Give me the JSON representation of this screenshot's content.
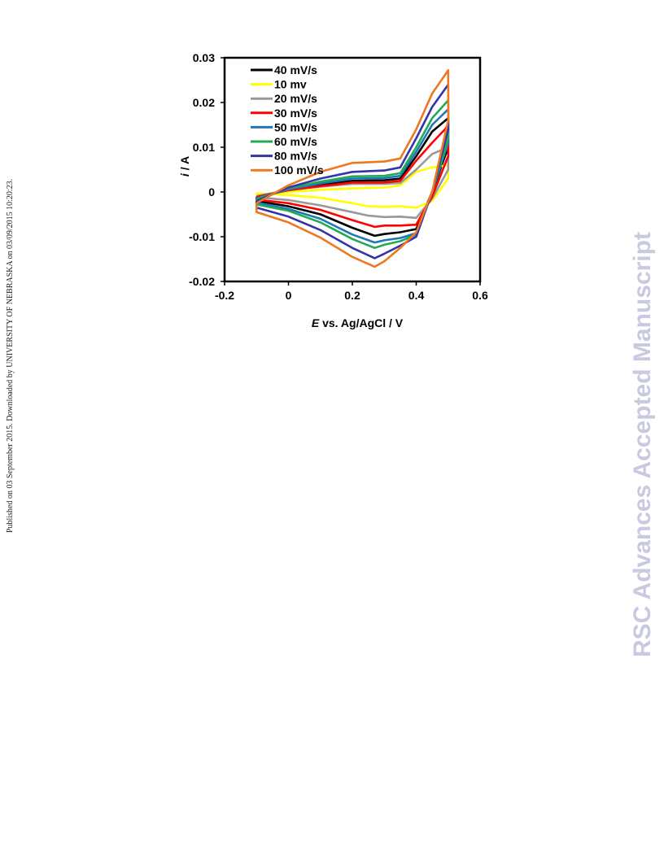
{
  "side_note": "Published on 03 September 2015. Downloaded by UNIVERSITY OF NEBRASKA on 03/09/2015 10:20:23.",
  "watermark": "RSC Advances Accepted Manuscript",
  "chart_data": {
    "type": "line",
    "xlabel_italic": "E",
    "xlabel_rest": " vs. Ag/AgCl  / V",
    "ylabel_italic": "i",
    "ylabel_rest": " / A",
    "xlim": [
      -0.2,
      0.6
    ],
    "ylim": [
      -0.02,
      0.03
    ],
    "x_ticks": [
      -0.2,
      0,
      0.2,
      0.4,
      0.6
    ],
    "x_tick_labels": [
      "-0.2",
      "0",
      "0.2",
      "0.4",
      "0.6"
    ],
    "y_ticks": [
      -0.02,
      -0.01,
      0,
      0.01,
      0.02,
      0.03
    ],
    "y_tick_labels": [
      "-0.02",
      "-0.01",
      "0",
      "0.01",
      "0.02",
      "0.03"
    ],
    "grid": false,
    "legend_position": "top-left",
    "series": [
      {
        "name": "40 mV/s",
        "color": "#000000",
        "x": [
          -0.1,
          0,
          0.1,
          0.2,
          0.3,
          0.35,
          0.4,
          0.45,
          0.5,
          0.5,
          0.45,
          0.4,
          0.35,
          0.3,
          0.27,
          0.2,
          0.1,
          0,
          -0.1,
          -0.1
        ],
        "y": [
          -0.0012,
          0.0005,
          0.0015,
          0.0025,
          0.0026,
          0.003,
          0.008,
          0.0135,
          0.0165,
          0.01,
          0.0,
          -0.0083,
          -0.009,
          -0.0094,
          -0.0098,
          -0.008,
          -0.005,
          -0.0032,
          -0.002,
          -0.0012
        ]
      },
      {
        "name": "10 mv",
        "color": "#ffff00",
        "x": [
          -0.1,
          0,
          0.1,
          0.2,
          0.3,
          0.35,
          0.4,
          0.45,
          0.5,
          0.5,
          0.45,
          0.4,
          0.35,
          0.3,
          0.25,
          0.2,
          0.1,
          0,
          -0.1,
          -0.1
        ],
        "y": [
          -0.0006,
          0.0,
          0.0005,
          0.0008,
          0.001,
          0.0015,
          0.0045,
          0.0055,
          0.006,
          0.003,
          -0.002,
          -0.0035,
          -0.0032,
          -0.0033,
          -0.0032,
          -0.0025,
          -0.0013,
          -0.0007,
          -0.0003,
          -0.0006
        ]
      },
      {
        "name": "20 mV/s",
        "color": "#999999",
        "x": [
          -0.1,
          0,
          0.1,
          0.2,
          0.3,
          0.35,
          0.4,
          0.45,
          0.5,
          0.5,
          0.45,
          0.4,
          0.35,
          0.3,
          0.25,
          0.2,
          0.1,
          0,
          -0.1,
          -0.1
        ],
        "y": [
          -0.0009,
          0.0004,
          0.0012,
          0.0018,
          0.0018,
          0.002,
          0.005,
          0.0085,
          0.01,
          0.005,
          -0.0015,
          -0.0058,
          -0.0055,
          -0.0056,
          -0.0053,
          -0.0045,
          -0.003,
          -0.0018,
          -0.0012,
          -0.0009
        ]
      },
      {
        "name": "30 mV/s",
        "color": "#ff0000",
        "x": [
          -0.1,
          0,
          0.1,
          0.2,
          0.3,
          0.35,
          0.4,
          0.45,
          0.49,
          0.5,
          0.5,
          0.45,
          0.4,
          0.35,
          0.3,
          0.27,
          0.2,
          0.1,
          0,
          -0.1,
          -0.1
        ],
        "y": [
          -0.0011,
          0.0004,
          0.0013,
          0.0021,
          0.0021,
          0.0025,
          0.007,
          0.011,
          0.014,
          0.015,
          0.008,
          -0.001,
          -0.0073,
          -0.0075,
          -0.0075,
          -0.0078,
          -0.0063,
          -0.004,
          -0.0025,
          -0.0017,
          -0.0011
        ]
      },
      {
        "name": "50 mV/s",
        "color": "#1f77b4",
        "x": [
          -0.1,
          0,
          0.1,
          0.2,
          0.3,
          0.35,
          0.4,
          0.45,
          0.5,
          0.5,
          0.45,
          0.4,
          0.35,
          0.3,
          0.27,
          0.2,
          0.1,
          0,
          -0.1,
          -0.1
        ],
        "y": [
          -0.0014,
          0.0006,
          0.0019,
          0.003,
          0.0031,
          0.0036,
          0.009,
          0.015,
          0.0185,
          0.011,
          0.0,
          -0.0092,
          -0.0103,
          -0.0108,
          -0.0113,
          -0.0095,
          -0.006,
          -0.0038,
          -0.0024,
          -0.0014
        ]
      },
      {
        "name": "60 mV/s",
        "color": "#22aa55",
        "x": [
          -0.1,
          0,
          0.1,
          0.2,
          0.3,
          0.35,
          0.4,
          0.45,
          0.5,
          0.5,
          0.45,
          0.4,
          0.35,
          0.3,
          0.27,
          0.2,
          0.1,
          0,
          -0.1,
          -0.1
        ],
        "y": [
          -0.0016,
          0.0008,
          0.0023,
          0.0035,
          0.0036,
          0.0042,
          0.01,
          0.0165,
          0.0205,
          0.012,
          0.0,
          -0.0095,
          -0.011,
          -0.0118,
          -0.0125,
          -0.0105,
          -0.0068,
          -0.0042,
          -0.0028,
          -0.0016
        ]
      },
      {
        "name": "80 mV/s",
        "color": "#3333aa",
        "x": [
          -0.1,
          0,
          0.1,
          0.2,
          0.3,
          0.35,
          0.4,
          0.45,
          0.5,
          0.5,
          0.45,
          0.4,
          0.35,
          0.3,
          0.27,
          0.2,
          0.1,
          0,
          -0.1,
          -0.1
        ],
        "y": [
          -0.002,
          0.001,
          0.003,
          0.0045,
          0.0048,
          0.0055,
          0.012,
          0.019,
          0.024,
          0.014,
          0.0,
          -0.01,
          -0.012,
          -0.0138,
          -0.0148,
          -0.0125,
          -0.0085,
          -0.0055,
          -0.0035,
          -0.002
        ]
      },
      {
        "name": "100 mV/s",
        "color": "#ee7722",
        "x": [
          -0.1,
          0,
          0.1,
          0.2,
          0.3,
          0.35,
          0.4,
          0.45,
          0.5,
          0.5,
          0.45,
          0.4,
          0.35,
          0.3,
          0.27,
          0.2,
          0.1,
          0,
          -0.1,
          -0.1
        ],
        "y": [
          -0.0025,
          0.0015,
          0.0045,
          0.0065,
          0.0068,
          0.0075,
          0.014,
          0.022,
          0.0272,
          0.016,
          0.0,
          -0.009,
          -0.0125,
          -0.0155,
          -0.0167,
          -0.0145,
          -0.0102,
          -0.0068,
          -0.0045,
          -0.0025
        ]
      }
    ]
  }
}
